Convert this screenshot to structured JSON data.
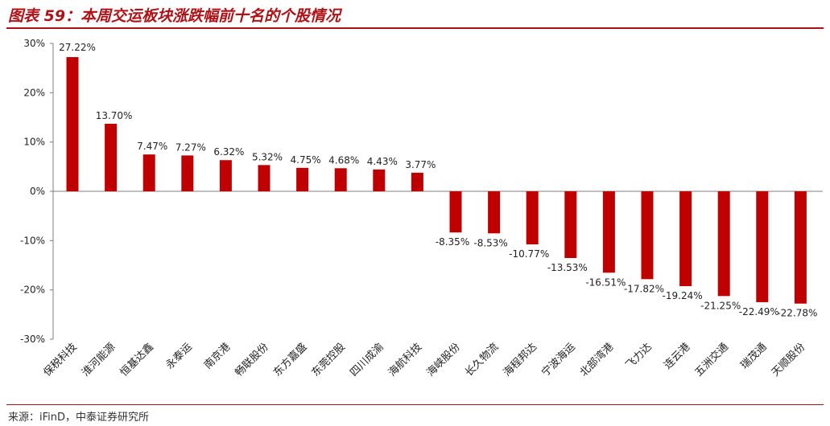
{
  "header": {
    "title": "图表 59：本周交运板块涨跌幅前十名的个股情况"
  },
  "footer": {
    "source": "来源：iFinD，中泰证券研究所"
  },
  "chart_data": {
    "type": "bar",
    "title": "图表 59：本周交运板块涨跌幅前十名的个股情况",
    "xlabel": "",
    "ylabel": "",
    "ylim": [
      -30,
      30
    ],
    "yticks": [
      30,
      20,
      10,
      0,
      -10,
      -20,
      -30
    ],
    "yticklabels": [
      "30%",
      "20%",
      "10%",
      "0%",
      "-10%",
      "-20%",
      "-30%"
    ],
    "grid": false,
    "bar_color": "#c00000",
    "categories": [
      "保税科技",
      "淮河能源",
      "恒基达鑫",
      "永泰运",
      "南京港",
      "畅联股份",
      "东方嘉盛",
      "东莞控股",
      "四川成渝",
      "海航科技",
      "海峡股份",
      "长久物流",
      "海程邦达",
      "宁波海运",
      "北部湾港",
      "飞力达",
      "连云港",
      "五洲交通",
      "瑞茂通",
      "天顺股份"
    ],
    "values": [
      27.22,
      13.7,
      7.47,
      7.27,
      6.32,
      5.32,
      4.75,
      4.68,
      4.43,
      3.77,
      -8.35,
      -8.53,
      -10.77,
      -13.53,
      -16.51,
      -17.82,
      -19.24,
      -21.25,
      -22.49,
      -22.78
    ],
    "labels": [
      "27.22%",
      "13.70%",
      "7.47%",
      "7.27%",
      "6.32%",
      "5.32%",
      "4.75%",
      "4.68%",
      "4.43%",
      "3.77%",
      "-8.35%",
      "-8.53%",
      "-10.77%",
      "-13.53%",
      "-16.51%",
      "-17.82%",
      "-19.24%",
      "-21.25%",
      "-22.49%",
      "-22.78%"
    ]
  }
}
